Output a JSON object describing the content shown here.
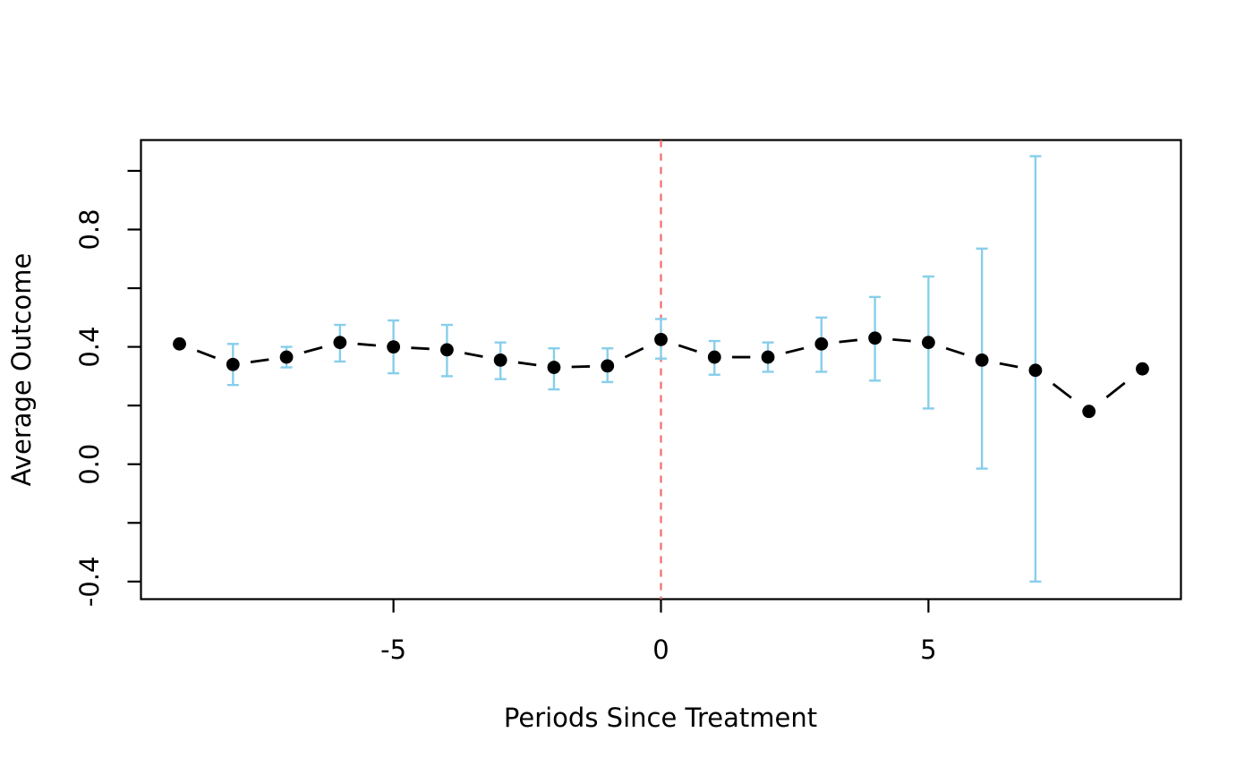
{
  "chart_data": {
    "type": "scatter",
    "subtype": "event-study-errorbar",
    "title": "",
    "xlabel": "Periods Since Treatment",
    "ylabel": "Average Outcome",
    "x": [
      -9,
      -8,
      -7,
      -6,
      -5,
      -4,
      -3,
      -2,
      -1,
      0,
      1,
      2,
      3,
      4,
      5,
      6,
      7,
      8,
      9
    ],
    "values": [
      0.41,
      0.34,
      0.365,
      0.415,
      0.4,
      0.39,
      0.355,
      0.33,
      0.335,
      0.425,
      0.365,
      0.365,
      0.41,
      0.43,
      0.415,
      0.355,
      0.32,
      0.18,
      0.325
    ],
    "ci_low": [
      null,
      0.27,
      0.33,
      0.35,
      0.31,
      0.3,
      0.29,
      0.255,
      0.28,
      0.36,
      0.305,
      0.315,
      0.315,
      0.285,
      0.19,
      -0.015,
      -0.4,
      null,
      null
    ],
    "ci_high": [
      null,
      0.41,
      0.4,
      0.475,
      0.49,
      0.475,
      0.415,
      0.395,
      0.395,
      0.495,
      0.42,
      0.415,
      0.5,
      0.57,
      0.64,
      0.735,
      1.05,
      null,
      null
    ],
    "vline_x": 0,
    "xticks": [
      {
        "v": -5,
        "label": "-5"
      },
      {
        "v": 0,
        "label": "0"
      },
      {
        "v": 5,
        "label": "5"
      }
    ],
    "yticks_labeled": [
      {
        "v": -0.4,
        "label": "-0.4"
      },
      {
        "v": 0.0,
        "label": "0.0"
      },
      {
        "v": 0.4,
        "label": "0.4"
      },
      {
        "v": 0.8,
        "label": "0.8"
      }
    ],
    "yticks_minor": [
      -0.2,
      0.2,
      0.6,
      1.0
    ],
    "xlim": [
      -9.72,
      9.72
    ],
    "ylim": [
      -0.46,
      1.105
    ],
    "grid": false,
    "legend": "none",
    "colors": {
      "point": "#000000",
      "series_line": "#000000",
      "error_bar": "#87CEEB",
      "treatment_line": "#F26B6B",
      "axis": "#000000",
      "background": "#ffffff"
    }
  }
}
